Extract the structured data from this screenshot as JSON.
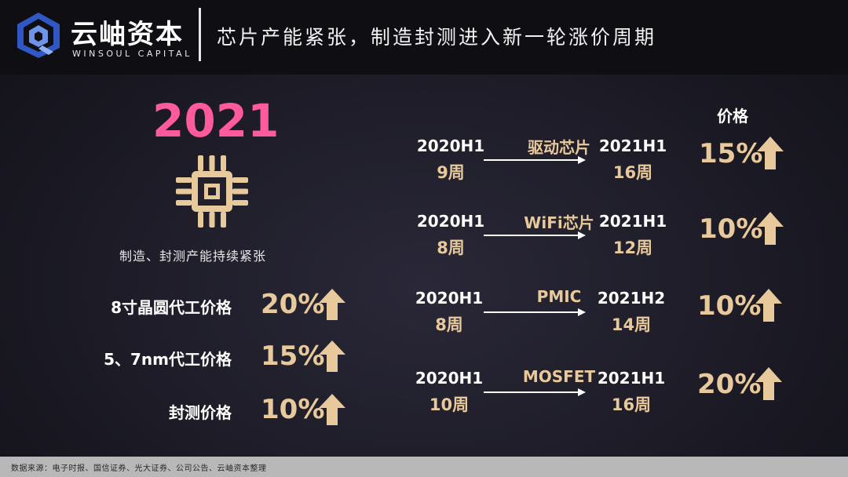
{
  "header": {
    "brand_cn": "云岫资本",
    "brand_en": "WINSOUL CAPITAL",
    "title": "芯片产能紧张，制造封测进入新一轮涨价周期"
  },
  "left": {
    "year": "2021",
    "chip_icon": "chip-icon",
    "caption": "制造、封测产能持续紧张",
    "price_items": [
      {
        "label": "8寸晶圆代工价格",
        "pct": "20%"
      },
      {
        "label": "5、7nm代工价格",
        "pct": "15%"
      },
      {
        "label": "封测价格",
        "pct": "10%"
      }
    ]
  },
  "right": {
    "prices_header": "价格",
    "rows": [
      {
        "from_period": "2020H1",
        "from_weeks": "9周",
        "chip": "驱动芯片",
        "to_period": "2021H1",
        "to_weeks": "16周",
        "pct": "15%"
      },
      {
        "from_period": "2020H1",
        "from_weeks": "8周",
        "chip": "WiFi芯片",
        "to_period": "2021H1",
        "to_weeks": "12周",
        "pct": "10%"
      },
      {
        "from_period": "2020H1",
        "from_weeks": "8周",
        "chip": "PMIC",
        "to_period": "2021H2",
        "to_weeks": "14周",
        "pct": "10%"
      },
      {
        "from_period": "2020H1",
        "from_weeks": "10周",
        "chip": "MOSFET",
        "to_period": "2021H1",
        "to_weeks": "16周",
        "pct": "20%"
      }
    ]
  },
  "footer": {
    "source": "数据来源：电子时报、国信证券、光大证券、公司公告、云岫资本整理"
  },
  "colors": {
    "accent_gold": "#e8c99b",
    "year_pink": "#ff5a9c",
    "logo_blue": "#3a63c8"
  }
}
